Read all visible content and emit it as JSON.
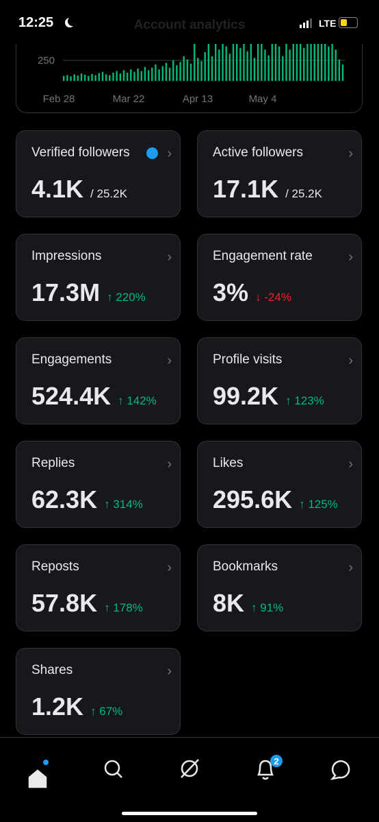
{
  "status_bar": {
    "time": "12:25",
    "network": "LTE"
  },
  "header": {
    "title": "Account analytics"
  },
  "chart": {
    "yticks": [
      250
    ],
    "x_labels": [
      "Feb 28",
      "Mar 22",
      "Apr 13",
      "May 4"
    ],
    "values": [
      60,
      70,
      55,
      80,
      65,
      90,
      75,
      60,
      85,
      70,
      95,
      110,
      80,
      70,
      100,
      120,
      90,
      130,
      100,
      140,
      110,
      150,
      120,
      170,
      130,
      160,
      200,
      140,
      180,
      220,
      160,
      250,
      190,
      230,
      300,
      260,
      210,
      500,
      280,
      240,
      350,
      520,
      300,
      480,
      380,
      550,
      420,
      330,
      500,
      600,
      400,
      470,
      360,
      520,
      280,
      450,
      600,
      380,
      310,
      480,
      560,
      420,
      300,
      600,
      380,
      520,
      650,
      450,
      400,
      700,
      480,
      600,
      520,
      650,
      580,
      420,
      700,
      380,
      260,
      200
    ]
  },
  "cards": [
    {
      "label": "Verified followers",
      "value": "4.1K",
      "total": "/ 25.2K"
    },
    {
      "label": "Active followers",
      "value": "17.1K",
      "total": "/ 25.2K"
    },
    {
      "label": "Impressions",
      "value": "17.3M",
      "change": "↑ 220%"
    },
    {
      "label": "Engagement rate",
      "value": "3%",
      "change": "↓ -24%"
    },
    {
      "label": "Engagements",
      "value": "524.4K",
      "change": "↑ 142%"
    },
    {
      "label": "Profile visits",
      "value": "99.2K",
      "change": "↑ 123%"
    },
    {
      "label": "Replies",
      "value": "62.3K",
      "change": "↑ 314%"
    },
    {
      "label": "Likes",
      "value": "295.6K",
      "change": "↑ 125%"
    },
    {
      "label": "Reposts",
      "value": "57.8K",
      "change": "↑ 178%"
    },
    {
      "label": "Bookmarks",
      "value": "8K",
      "change": "↑ 91%"
    },
    {
      "label": "Shares",
      "value": "1.2K",
      "change": "↑ 67%"
    }
  ],
  "nav": {
    "notification_badge": "2"
  }
}
